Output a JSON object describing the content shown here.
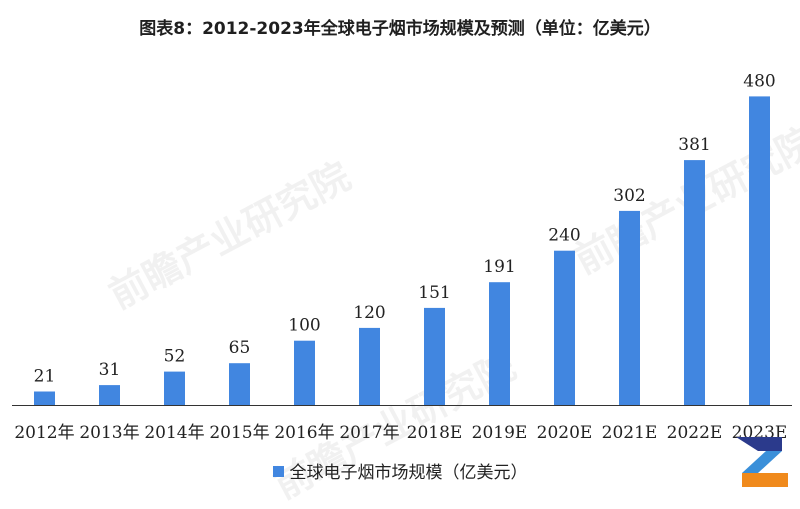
{
  "chart_data": {
    "type": "bar",
    "title": "图表8：2012-2023年全球电子烟市场规模及预测（单位：亿美元）",
    "categories": [
      "2012年",
      "2013年",
      "2014年",
      "2015年",
      "2016年",
      "2017年",
      "2018E",
      "2019E",
      "2020E",
      "2021E",
      "2022E",
      "2023E"
    ],
    "series": [
      {
        "name": "全球电子烟市场规模（亿美元）",
        "values": [
          21,
          31,
          52,
          65,
          100,
          120,
          151,
          191,
          240,
          302,
          381,
          480
        ]
      }
    ],
    "ylim": [
      0,
      560
    ],
    "grid": false,
    "legend_position": "bottom"
  },
  "colors": {
    "bar": "#4186E0",
    "axis": "#333333"
  },
  "watermark": "前瞻产业研究院",
  "logo_icon": "brand-z-logo-icon"
}
